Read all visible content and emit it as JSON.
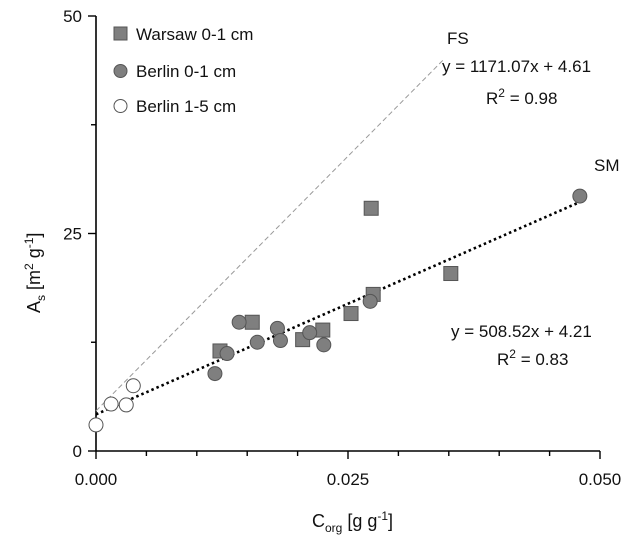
{
  "chart_data": {
    "type": "scatter",
    "xlabel": {
      "main": "C",
      "sub": "org",
      "rest": " [g g",
      "sup": "-1",
      "end": "]"
    },
    "ylabel": {
      "main": "A",
      "sub": "s",
      "rest": " [m",
      "sup1": "2",
      "mid": " g",
      "sup2": "-1",
      "end": "]"
    },
    "xlim": [
      0,
      0.05
    ],
    "ylim": [
      0,
      50
    ],
    "x_ticks": [
      0.0,
      0.025,
      0.05
    ],
    "x_tick_labels": [
      "0.000",
      "0.025",
      "0.050"
    ],
    "y_ticks": [
      0,
      25,
      50
    ],
    "y_tick_labels": [
      "0",
      "25",
      "50"
    ],
    "legend_position": "top-left",
    "series": [
      {
        "name": "Warsaw 0-1 cm",
        "marker": "square",
        "color": "#7f7f7f",
        "points": [
          [
            0.0123,
            11.5
          ],
          [
            0.0155,
            14.8
          ],
          [
            0.0205,
            12.8
          ],
          [
            0.0225,
            13.9
          ],
          [
            0.0253,
            15.8
          ],
          [
            0.0275,
            18.0
          ],
          [
            0.0273,
            27.9
          ],
          [
            0.0352,
            20.4
          ]
        ]
      },
      {
        "name": "Berlin 0-1 cm",
        "marker": "circle",
        "color": "#7f7f7f",
        "points": [
          [
            0.0118,
            8.9
          ],
          [
            0.013,
            11.2
          ],
          [
            0.0142,
            14.8
          ],
          [
            0.016,
            12.5
          ],
          [
            0.018,
            14.1
          ],
          [
            0.0183,
            12.7
          ],
          [
            0.0212,
            13.6
          ],
          [
            0.0226,
            12.2
          ],
          [
            0.0272,
            17.2
          ],
          [
            0.048,
            29.3
          ]
        ]
      },
      {
        "name": "Berlin 1-5 cm",
        "marker": "circle-open",
        "color": "#ffffff",
        "points": [
          [
            0.0,
            3.0
          ],
          [
            0.0015,
            5.4
          ],
          [
            0.003,
            5.3
          ],
          [
            0.0037,
            7.5
          ]
        ]
      }
    ],
    "lines": [
      {
        "label": "FS",
        "equation": "y = 1171.07x + 4.61",
        "r2_prefix": "R",
        "r2_sup": "2",
        "r2_value": " = 0.98",
        "style": "dashed",
        "color": "#9a9a9a",
        "x_range": [
          0.0,
          0.0345
        ]
      },
      {
        "label": "SM",
        "equation": "y = 508.52x + 4.21",
        "r2_prefix": "R",
        "r2_sup": "2",
        "r2_value": " = 0.83",
        "style": "dotted",
        "color": "#000000",
        "x_range": [
          0.0,
          0.048
        ]
      }
    ]
  }
}
